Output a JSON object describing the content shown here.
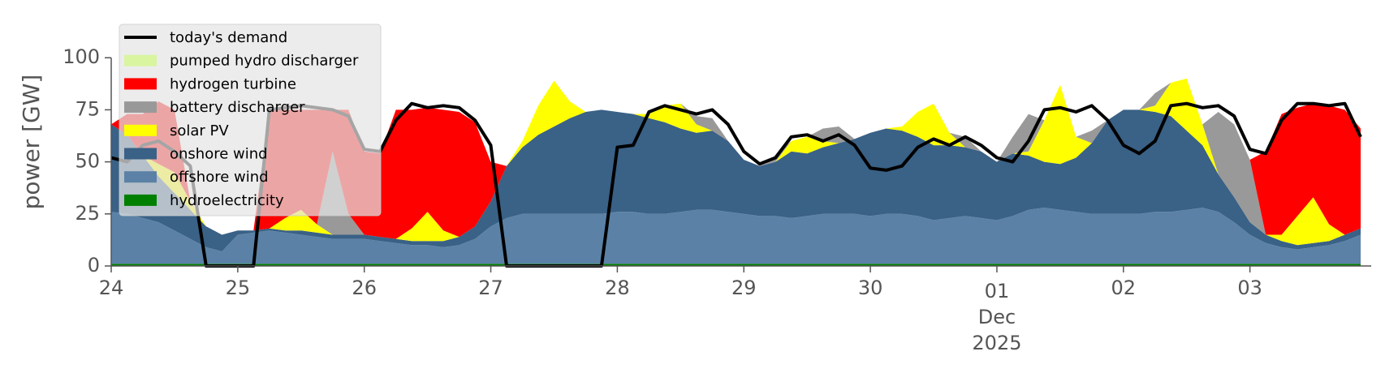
{
  "chart_data": {
    "type": "stacked_area",
    "ylabel": "power [GW]",
    "ylim": [
      0,
      118
    ],
    "yticks": [
      0,
      25,
      50,
      75,
      100
    ],
    "xlim": [
      "2025-11-24T00:00",
      "2025-12-03T23:00"
    ],
    "xticks": [
      {
        "value": "2025-11-24T00:00",
        "label": "24"
      },
      {
        "value": "2025-11-25T00:00",
        "label": "25"
      },
      {
        "value": "2025-11-26T00:00",
        "label": "26"
      },
      {
        "value": "2025-11-27T00:00",
        "label": "27"
      },
      {
        "value": "2025-11-28T00:00",
        "label": "28"
      },
      {
        "value": "2025-11-29T00:00",
        "label": "29"
      },
      {
        "value": "2025-11-30T00:00",
        "label": "30"
      },
      {
        "value": "2025-12-01T00:00",
        "label": "01"
      },
      {
        "value": "2025-12-02T00:00",
        "label": "02"
      },
      {
        "value": "2025-12-03T00:00",
        "label": "03"
      }
    ],
    "x_month_label": "Dec",
    "x_year_label": "2025",
    "legend": "upper left",
    "x": [
      "2025-11-24T00:00",
      "2025-11-24T03:00",
      "2025-11-24T06:00",
      "2025-11-24T09:00",
      "2025-11-24T12:00",
      "2025-11-24T15:00",
      "2025-11-24T18:00",
      "2025-11-24T21:00",
      "2025-11-25T00:00",
      "2025-11-25T03:00",
      "2025-11-25T06:00",
      "2025-11-25T09:00",
      "2025-11-25T12:00",
      "2025-11-25T15:00",
      "2025-11-25T18:00",
      "2025-11-25T21:00",
      "2025-11-26T00:00",
      "2025-11-26T03:00",
      "2025-11-26T06:00",
      "2025-11-26T09:00",
      "2025-11-26T12:00",
      "2025-11-26T15:00",
      "2025-11-26T18:00",
      "2025-11-26T21:00",
      "2025-11-27T00:00",
      "2025-11-27T03:00",
      "2025-11-27T06:00",
      "2025-11-27T09:00",
      "2025-11-27T12:00",
      "2025-11-27T15:00",
      "2025-11-27T18:00",
      "2025-11-27T21:00",
      "2025-11-28T00:00",
      "2025-11-28T03:00",
      "2025-11-28T06:00",
      "2025-11-28T09:00",
      "2025-11-28T12:00",
      "2025-11-28T15:00",
      "2025-11-28T18:00",
      "2025-11-28T21:00",
      "2025-11-29T00:00",
      "2025-11-29T03:00",
      "2025-11-29T06:00",
      "2025-11-29T09:00",
      "2025-11-29T12:00",
      "2025-11-29T15:00",
      "2025-11-29T18:00",
      "2025-11-29T21:00",
      "2025-11-30T00:00",
      "2025-11-30T03:00",
      "2025-11-30T06:00",
      "2025-11-30T09:00",
      "2025-11-30T12:00",
      "2025-11-30T15:00",
      "2025-11-30T18:00",
      "2025-11-30T21:00",
      "2025-12-01T00:00",
      "2025-12-01T03:00",
      "2025-12-01T06:00",
      "2025-12-01T09:00",
      "2025-12-01T12:00",
      "2025-12-01T15:00",
      "2025-12-01T18:00",
      "2025-12-01T21:00",
      "2025-12-02T00:00",
      "2025-12-02T03:00",
      "2025-12-02T06:00",
      "2025-12-02T09:00",
      "2025-12-02T12:00",
      "2025-12-02T15:00",
      "2025-12-02T18:00",
      "2025-12-02T21:00",
      "2025-12-03T00:00",
      "2025-12-03T03:00",
      "2025-12-03T06:00",
      "2025-12-03T09:00",
      "2025-12-03T12:00",
      "2025-12-03T15:00",
      "2025-12-03T18:00",
      "2025-12-03T21:00"
    ],
    "series": [
      {
        "name": "hydroelectricity",
        "color": "#008000",
        "values": [
          1,
          1,
          1,
          1,
          1,
          1,
          1,
          1,
          1,
          1,
          1,
          1,
          1,
          1,
          1,
          1,
          1,
          1,
          1,
          1,
          1,
          1,
          1,
          1,
          1,
          1,
          1,
          1,
          1,
          1,
          1,
          1,
          1,
          1,
          1,
          1,
          1,
          1,
          1,
          1,
          1,
          1,
          1,
          1,
          1,
          1,
          1,
          1,
          1,
          1,
          1,
          1,
          1,
          1,
          1,
          1,
          1,
          1,
          1,
          1,
          1,
          1,
          1,
          1,
          1,
          1,
          1,
          1,
          1,
          1,
          1,
          1,
          1,
          1,
          1,
          1,
          1,
          1,
          1,
          1
        ]
      },
      {
        "name": "offshore wind",
        "color": "#5b82a6",
        "values": [
          25,
          24,
          22,
          20,
          16,
          12,
          8,
          6,
          14,
          15,
          16,
          15,
          14,
          13,
          12,
          12,
          12,
          11,
          10,
          9,
          9,
          8,
          9,
          12,
          18,
          22,
          24,
          24,
          24,
          24,
          24,
          24,
          25,
          25,
          24,
          24,
          25,
          26,
          26,
          25,
          24,
          23,
          23,
          22,
          23,
          24,
          24,
          24,
          23,
          24,
          24,
          23,
          21,
          22,
          23,
          22,
          21,
          23,
          26,
          27,
          26,
          25,
          24,
          24,
          24,
          24,
          25,
          25,
          26,
          27,
          25,
          20,
          14,
          10,
          8,
          7,
          8,
          9,
          11,
          14
        ]
      },
      {
        "name": "onshore wind",
        "color": "#3a6186",
        "values": [
          42,
          38,
          30,
          22,
          18,
          14,
          10,
          8,
          2,
          1,
          1,
          1,
          2,
          2,
          2,
          2,
          2,
          2,
          2,
          2,
          2,
          3,
          4,
          6,
          12,
          25,
          32,
          38,
          42,
          46,
          49,
          50,
          48,
          47,
          46,
          44,
          40,
          37,
          38,
          34,
          26,
          24,
          26,
          32,
          30,
          32,
          34,
          36,
          40,
          41,
          40,
          38,
          36,
          35,
          33,
          32,
          28,
          30,
          26,
          22,
          22,
          26,
          34,
          45,
          50,
          50,
          48,
          46,
          38,
          30,
          18,
          12,
          6,
          4,
          3,
          2,
          2,
          2,
          3,
          3
        ]
      },
      {
        "name": "solar PV",
        "color": "#ffff00",
        "values": [
          0,
          0,
          0,
          6,
          10,
          4,
          0,
          0,
          0,
          0,
          0,
          6,
          10,
          4,
          0,
          0,
          0,
          0,
          0,
          6,
          14,
          5,
          0,
          0,
          0,
          0,
          3,
          14,
          22,
          8,
          0,
          0,
          0,
          0,
          2,
          8,
          12,
          4,
          0,
          0,
          0,
          0,
          0,
          5,
          8,
          3,
          0,
          0,
          0,
          0,
          2,
          12,
          20,
          6,
          0,
          0,
          0,
          0,
          2,
          20,
          38,
          10,
          0,
          0,
          0,
          0,
          3,
          16,
          25,
          10,
          0,
          0,
          0,
          0,
          3,
          14,
          22,
          8,
          0,
          0
        ]
      },
      {
        "name": "battery discharger",
        "color": "#999999",
        "values": [
          0,
          0,
          0,
          0,
          0,
          0,
          0,
          0,
          0,
          0,
          0,
          0,
          0,
          0,
          40,
          10,
          0,
          0,
          0,
          0,
          0,
          0,
          0,
          0,
          0,
          0,
          0,
          0,
          0,
          0,
          0,
          0,
          0,
          0,
          0,
          0,
          0,
          4,
          6,
          0,
          0,
          0,
          3,
          0,
          0,
          6,
          8,
          0,
          0,
          0,
          0,
          0,
          0,
          0,
          5,
          0,
          0,
          8,
          18,
          0,
          0,
          0,
          6,
          0,
          0,
          0,
          6,
          0,
          0,
          0,
          30,
          35,
          30,
          0,
          0,
          0,
          0,
          0,
          0,
          0
        ]
      },
      {
        "name": "hydrogen turbine",
        "color": "#ff0000",
        "values": [
          0,
          10,
          20,
          30,
          30,
          0,
          0,
          0,
          0,
          0,
          57,
          52,
          48,
          55,
          20,
          50,
          40,
          40,
          62,
          57,
          50,
          58,
          60,
          50,
          19,
          0,
          0,
          0,
          0,
          0,
          0,
          0,
          0,
          0,
          0,
          0,
          0,
          0,
          0,
          0,
          0,
          0,
          0,
          0,
          0,
          0,
          0,
          0,
          0,
          0,
          0,
          0,
          0,
          0,
          0,
          0,
          0,
          0,
          0,
          0,
          0,
          0,
          0,
          0,
          0,
          0,
          0,
          0,
          0,
          0,
          0,
          0,
          0,
          40,
          58,
          52,
          45,
          57,
          60,
          48
        ]
      },
      {
        "name": "pumped hydro discharger",
        "color": "#d9f5a0",
        "values": [
          0,
          0,
          0,
          0,
          0,
          0,
          0,
          0,
          0,
          0,
          0,
          0,
          0,
          0,
          0,
          0,
          0,
          0,
          0,
          0,
          0,
          0,
          0,
          0,
          0,
          0,
          0,
          0,
          0,
          0,
          0,
          0,
          0,
          0,
          0,
          0,
          0,
          0,
          0,
          0,
          0,
          0,
          0,
          0,
          0,
          0,
          0,
          0,
          0,
          0,
          0,
          0,
          0,
          0,
          0,
          0,
          0,
          0,
          0,
          0,
          0,
          0,
          0,
          0,
          0,
          0,
          0,
          0,
          0,
          0,
          0,
          0,
          0,
          0,
          0,
          0,
          0,
          0,
          0,
          0
        ]
      }
    ],
    "demand": {
      "name": "today's demand",
      "color": "#000000",
      "values": [
        52,
        50,
        58,
        60,
        55,
        48,
        0,
        0,
        0,
        0,
        75,
        76,
        77,
        76,
        75,
        72,
        56,
        55,
        70,
        78,
        76,
        77,
        76,
        70,
        58,
        0,
        0,
        0,
        0,
        0,
        0,
        0,
        57,
        58,
        74,
        77,
        75,
        73,
        75,
        68,
        55,
        49,
        52,
        62,
        63,
        60,
        63,
        58,
        47,
        46,
        48,
        57,
        61,
        58,
        62,
        58,
        52,
        50,
        60,
        75,
        76,
        74,
        77,
        70,
        58,
        54,
        60,
        77,
        78,
        76,
        77,
        72,
        56,
        54,
        70,
        78,
        78,
        77,
        78,
        62
      ]
    }
  }
}
